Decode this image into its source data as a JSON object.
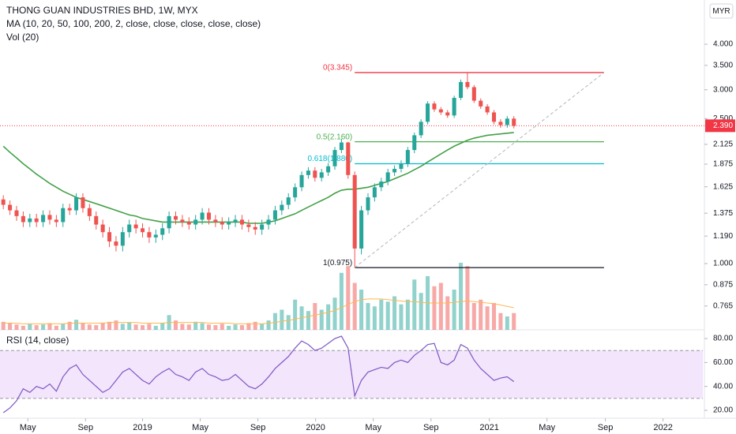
{
  "header": {
    "title": "THONG GUAN INDUSTRIES BHD, 1W, MYX",
    "ma_label": "MA (10, 20, 50, 100, 200, 2, close, close, close, close, close)",
    "vol_label": "Vol (20)",
    "currency": "MYR"
  },
  "chart_data": [
    {
      "type": "candlestick",
      "log_scale": true,
      "up_color": "#26a69a",
      "down_color": "#ef5350",
      "x": [
        0,
        1,
        2,
        3,
        4,
        5,
        6,
        7,
        8,
        9,
        10,
        11,
        12,
        13,
        14,
        15,
        16,
        17,
        18,
        19,
        20,
        21,
        22,
        23,
        24,
        25,
        26,
        27,
        28,
        29,
        30,
        31,
        32,
        33,
        34,
        35,
        36,
        37,
        38,
        39,
        40,
        41,
        42,
        43,
        44,
        45,
        46,
        47,
        48,
        49,
        50,
        51,
        52,
        53,
        54,
        55,
        56,
        57,
        58,
        59,
        60,
        61,
        62,
        63,
        64,
        65,
        66,
        67,
        68,
        69,
        70,
        71,
        72,
        73,
        74,
        75,
        76,
        77
      ],
      "open": [
        1.5,
        1.45,
        1.4,
        1.35,
        1.3,
        1.33,
        1.3,
        1.36,
        1.32,
        1.3,
        1.42,
        1.4,
        1.52,
        1.42,
        1.35,
        1.28,
        1.22,
        1.15,
        1.12,
        1.22,
        1.28,
        1.25,
        1.22,
        1.18,
        1.2,
        1.25,
        1.35,
        1.32,
        1.3,
        1.28,
        1.32,
        1.38,
        1.32,
        1.3,
        1.28,
        1.3,
        1.32,
        1.28,
        1.26,
        1.24,
        1.28,
        1.32,
        1.4,
        1.45,
        1.52,
        1.62,
        1.75,
        1.8,
        1.72,
        1.78,
        1.85,
        2.05,
        2.15,
        1.75,
        1.1,
        1.4,
        1.52,
        1.62,
        1.68,
        1.78,
        1.82,
        1.88,
        2.05,
        2.25,
        2.45,
        2.75,
        2.65,
        2.6,
        2.55,
        2.85,
        3.15,
        3.05,
        2.8,
        2.7,
        2.6,
        2.45,
        2.4,
        2.5
      ],
      "high": [
        1.54,
        1.49,
        1.44,
        1.39,
        1.37,
        1.37,
        1.4,
        1.4,
        1.36,
        1.46,
        1.46,
        1.56,
        1.56,
        1.46,
        1.39,
        1.32,
        1.26,
        1.19,
        1.26,
        1.32,
        1.32,
        1.29,
        1.26,
        1.24,
        1.29,
        1.39,
        1.39,
        1.36,
        1.34,
        1.36,
        1.42,
        1.42,
        1.36,
        1.34,
        1.34,
        1.36,
        1.36,
        1.32,
        1.3,
        1.32,
        1.36,
        1.44,
        1.49,
        1.56,
        1.66,
        1.79,
        1.84,
        1.84,
        1.82,
        1.89,
        2.09,
        2.2,
        2.16,
        1.79,
        1.44,
        1.56,
        1.66,
        1.72,
        1.82,
        1.86,
        1.92,
        2.09,
        2.29,
        2.49,
        2.79,
        2.79,
        2.69,
        2.64,
        2.89,
        3.2,
        3.345,
        3.09,
        2.84,
        2.74,
        2.64,
        2.49,
        2.54,
        2.54
      ],
      "low": [
        1.41,
        1.36,
        1.31,
        1.26,
        1.26,
        1.26,
        1.26,
        1.28,
        1.26,
        1.26,
        1.36,
        1.36,
        1.38,
        1.31,
        1.24,
        1.18,
        1.11,
        1.08,
        1.08,
        1.18,
        1.21,
        1.18,
        1.14,
        1.14,
        1.16,
        1.21,
        1.28,
        1.26,
        1.24,
        1.24,
        1.28,
        1.28,
        1.26,
        1.24,
        1.24,
        1.26,
        1.24,
        1.22,
        1.2,
        1.2,
        1.24,
        1.28,
        1.36,
        1.41,
        1.48,
        1.58,
        1.71,
        1.68,
        1.68,
        1.74,
        1.81,
        2.01,
        1.71,
        0.975,
        1.06,
        1.36,
        1.48,
        1.58,
        1.64,
        1.74,
        1.78,
        1.84,
        2.01,
        2.21,
        2.41,
        2.61,
        2.56,
        2.51,
        2.51,
        2.81,
        3.01,
        2.76,
        2.66,
        2.56,
        2.41,
        2.36,
        2.36,
        2.35
      ],
      "close": [
        1.45,
        1.4,
        1.35,
        1.3,
        1.33,
        1.3,
        1.36,
        1.32,
        1.3,
        1.42,
        1.4,
        1.52,
        1.42,
        1.35,
        1.28,
        1.22,
        1.15,
        1.12,
        1.22,
        1.28,
        1.25,
        1.22,
        1.18,
        1.2,
        1.25,
        1.35,
        1.32,
        1.3,
        1.28,
        1.32,
        1.38,
        1.32,
        1.3,
        1.28,
        1.3,
        1.32,
        1.28,
        1.26,
        1.24,
        1.28,
        1.32,
        1.4,
        1.45,
        1.52,
        1.62,
        1.75,
        1.8,
        1.72,
        1.78,
        1.85,
        2.05,
        2.15,
        1.75,
        1.1,
        1.4,
        1.52,
        1.62,
        1.68,
        1.78,
        1.82,
        1.88,
        2.05,
        2.25,
        2.45,
        2.75,
        2.65,
        2.6,
        2.55,
        2.85,
        3.15,
        3.05,
        2.8,
        2.7,
        2.6,
        2.45,
        2.4,
        2.5,
        2.39
      ],
      "ma": {
        "color": "#43a047",
        "values": [
          2.1,
          2.02,
          1.95,
          1.88,
          1.82,
          1.76,
          1.71,
          1.66,
          1.62,
          1.58,
          1.55,
          1.52,
          1.5,
          1.48,
          1.46,
          1.44,
          1.42,
          1.4,
          1.38,
          1.36,
          1.35,
          1.33,
          1.32,
          1.31,
          1.3,
          1.3,
          1.3,
          1.3,
          1.3,
          1.3,
          1.3,
          1.3,
          1.3,
          1.3,
          1.3,
          1.3,
          1.3,
          1.29,
          1.29,
          1.29,
          1.3,
          1.31,
          1.33,
          1.35,
          1.37,
          1.4,
          1.43,
          1.46,
          1.49,
          1.52,
          1.56,
          1.59,
          1.6,
          1.6,
          1.61,
          1.62,
          1.64,
          1.66,
          1.68,
          1.71,
          1.74,
          1.77,
          1.81,
          1.85,
          1.9,
          1.95,
          2.0,
          2.05,
          2.1,
          2.14,
          2.18,
          2.21,
          2.23,
          2.25,
          2.26,
          2.27,
          2.28,
          2.29
        ]
      },
      "fib_x": [
        53,
        90.6
      ],
      "fib_levels": [
        {
          "label": "0(3.345)",
          "value": 3.345,
          "color": "#f23645"
        },
        {
          "label": "0.5(2.160)",
          "value": 2.16,
          "color": "#4caf50"
        },
        {
          "label": "0.618(1.880)",
          "value": 1.88,
          "color": "#00bcd4"
        },
        {
          "label": "1(0.975)",
          "value": 0.975,
          "color": "#131722"
        }
      ],
      "last_price": {
        "value": 2.39,
        "label": "2.390",
        "color": "#f23645"
      },
      "xlim": [
        -0.5,
        105.5
      ],
      "xticks": [
        {
          "value": 3.7,
          "label": "May"
        },
        {
          "value": 12.4,
          "label": "Sep"
        },
        {
          "value": 21.0,
          "label": "2019"
        },
        {
          "value": 29.7,
          "label": "May"
        },
        {
          "value": 38.4,
          "label": "Sep"
        },
        {
          "value": 47.1,
          "label": "2020"
        },
        {
          "value": 55.8,
          "label": "May"
        },
        {
          "value": 64.5,
          "label": "Sep"
        },
        {
          "value": 73.3,
          "label": "2021"
        },
        {
          "value": 82.0,
          "label": "May"
        },
        {
          "value": 90.8,
          "label": "Sep"
        },
        {
          "value": 99.5,
          "label": "2022"
        }
      ],
      "ylim": [
        0.658,
        5.29
      ],
      "yticks": [
        {
          "value": 4,
          "label": "4.000"
        },
        {
          "value": 3.5,
          "label": "3.500"
        },
        {
          "value": 3,
          "label": "3.000"
        },
        {
          "value": 2.5,
          "label": "2.500"
        },
        {
          "value": 2.125,
          "label": "2.125"
        },
        {
          "value": 1.875,
          "label": "1.875"
        },
        {
          "value": 1.625,
          "label": "1.625"
        },
        {
          "value": 1.375,
          "label": "1.375"
        },
        {
          "value": 1.19,
          "label": "1.190"
        },
        {
          "value": 1,
          "label": "1.000"
        },
        {
          "value": 0.875,
          "label": "0.875"
        },
        {
          "value": 0.765,
          "label": "0.765"
        }
      ]
    },
    {
      "type": "bar",
      "ylim": [
        0,
        100
      ],
      "values": [
        12,
        10,
        8,
        6,
        9,
        7,
        8,
        10,
        6,
        9,
        12,
        15,
        10,
        8,
        7,
        10,
        12,
        14,
        9,
        11,
        8,
        7,
        9,
        6,
        10,
        22,
        14,
        9,
        8,
        12,
        10,
        8,
        7,
        9,
        6,
        8,
        7,
        10,
        12,
        9,
        14,
        25,
        30,
        22,
        45,
        35,
        28,
        40,
        30,
        38,
        48,
        85,
        95,
        70,
        60,
        40,
        35,
        45,
        42,
        50,
        38,
        45,
        75,
        55,
        80,
        65,
        70,
        50,
        60,
        100,
        95,
        40,
        45,
        35,
        40,
        25,
        20,
        25
      ],
      "ma": {
        "color": "#ffb74d",
        "values": [
          10,
          10,
          10,
          9,
          9,
          9,
          9,
          9,
          9,
          9,
          10,
          10,
          10,
          10,
          10,
          10,
          11,
          11,
          11,
          11,
          11,
          10,
          10,
          10,
          10,
          11,
          11,
          11,
          11,
          11,
          11,
          10,
          10,
          10,
          10,
          9,
          9,
          9,
          9,
          9,
          10,
          11,
          13,
          14,
          16,
          18,
          20,
          22,
          24,
          26,
          29,
          33,
          38,
          42,
          45,
          46,
          46,
          46,
          45,
          44,
          43,
          42,
          42,
          41,
          40,
          40,
          40,
          40,
          41,
          42,
          43,
          42,
          41,
          40,
          39,
          37,
          35,
          33
        ]
      }
    },
    {
      "type": "line",
      "title": "RSI (14, close)",
      "color": "#7e57c2",
      "band": [
        30,
        70
      ],
      "band_color": "#f3e5fc",
      "values": [
        18,
        22,
        28,
        38,
        35,
        40,
        38,
        42,
        36,
        48,
        55,
        58,
        50,
        45,
        40,
        35,
        38,
        45,
        52,
        55,
        50,
        45,
        42,
        48,
        52,
        55,
        50,
        48,
        45,
        52,
        55,
        50,
        48,
        45,
        46,
        50,
        45,
        40,
        38,
        42,
        48,
        55,
        60,
        65,
        72,
        78,
        75,
        70,
        72,
        76,
        80,
        82,
        72,
        32,
        45,
        52,
        54,
        56,
        55,
        60,
        62,
        60,
        66,
        70,
        75,
        76,
        60,
        58,
        62,
        75,
        72,
        62,
        55,
        50,
        45,
        47,
        48,
        44
      ],
      "ylim": [
        13.4,
        87.3
      ],
      "yticks": [
        {
          "value": 80,
          "label": "80.00"
        },
        {
          "value": 60,
          "label": "60.00"
        },
        {
          "value": 40,
          "label": "40.00"
        },
        {
          "value": 20,
          "label": "20.00"
        }
      ]
    }
  ]
}
